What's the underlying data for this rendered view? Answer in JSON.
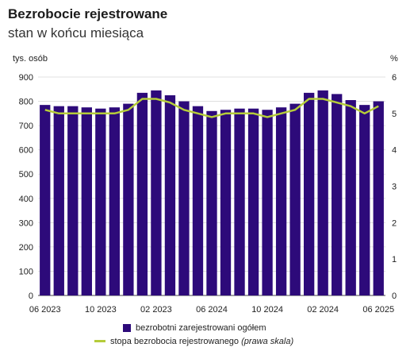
{
  "title": "Bezrobocie rejestrowane",
  "subtitle": "stan w końcu miesiąca",
  "left_unit": "tys. osób",
  "right_unit": "%",
  "legend": {
    "bars": "bezrobotni zarejestrowani ogółem",
    "line_main": "stopa bezrobocia rejestrowanego",
    "line_note": "(prawa skala)"
  },
  "colors": {
    "bars": "#2d0a7a",
    "line": "#b5cc3a"
  },
  "chart_data": {
    "type": "bar",
    "categories": [
      "06 2023",
      "07 2023",
      "08 2023",
      "09 2023",
      "10 2023",
      "11 2023",
      "12 2023",
      "01 2024",
      "02 2023",
      "03 2024",
      "04 2024",
      "05 2024",
      "06 2024",
      "07 2024",
      "08 2024",
      "09 2024",
      "10 2024",
      "11 2024",
      "12 2024",
      "01 2025",
      "02 2024",
      "03 2025",
      "04 2025",
      "05 2025",
      "06 2025"
    ],
    "x_tick_labels": [
      "06 2023",
      "10 2023",
      "02 2023",
      "06 2024",
      "10 2024",
      "02 2024",
      "06 2025"
    ],
    "x_tick_index": [
      0,
      4,
      8,
      12,
      16,
      20,
      24
    ],
    "series": [
      {
        "values": [
          785,
          780,
          780,
          775,
          770,
          775,
          790,
          835,
          845,
          825,
          800,
          780,
          760,
          765,
          770,
          770,
          765,
          775,
          790,
          835,
          845,
          830,
          805,
          785,
          800
        ]
      },
      {
        "values": [
          5.1,
          5.0,
          5.0,
          5.0,
          5.0,
          5.0,
          5.1,
          5.4,
          5.4,
          5.3,
          5.1,
          5.0,
          4.9,
          5.0,
          5.0,
          5.0,
          4.9,
          5.0,
          5.1,
          5.4,
          5.4,
          5.3,
          5.2,
          5.0,
          5.2
        ],
        "axis": "right"
      }
    ],
    "ylim": [
      0,
      900
    ],
    "yticks": [
      0,
      100,
      200,
      300,
      400,
      500,
      600,
      700,
      800,
      900
    ],
    "ylim_right": [
      0,
      6
    ],
    "yticks_right": [
      0,
      1,
      2,
      3,
      4,
      5,
      6
    ],
    "grid": "horizontal",
    "legend_position": "bottom-center"
  }
}
